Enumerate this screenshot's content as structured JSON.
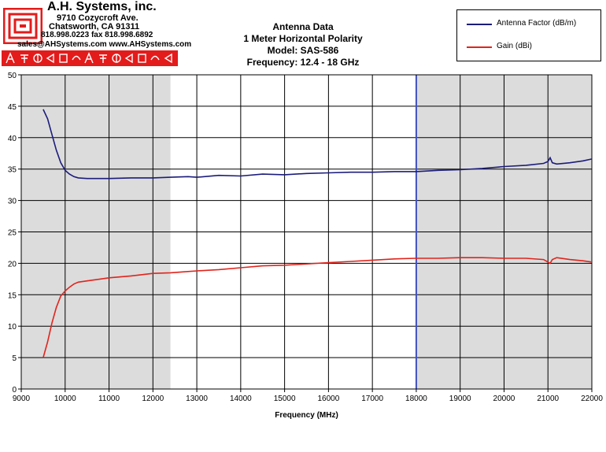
{
  "header": {
    "company_name": "A.H. Systems, inc.",
    "address_line1": "9710 Cozycroft Ave.",
    "address_line2": "Chatsworth, CA 91311",
    "phone_fax": "818.998.0223 fax 818.998.6892",
    "email_web": "sales@AHSystems.com www.AHSystems.com"
  },
  "chart_data": {
    "type": "line",
    "title_lines": [
      "Antenna Data",
      "1 Meter Horizontal Polarity",
      "Model: SAS-586",
      "Frequency: 12.4 - 18 GHz"
    ],
    "xlabel": "Frequency (MHz)",
    "ylabel": "",
    "xlim": [
      9000,
      22000
    ],
    "ylim": [
      0,
      50
    ],
    "x_ticks": [
      9000,
      10000,
      11000,
      12000,
      13000,
      14000,
      15000,
      16000,
      17000,
      18000,
      19000,
      20000,
      21000,
      22000
    ],
    "y_ticks": [
      0,
      5,
      10,
      15,
      20,
      25,
      30,
      35,
      40,
      45,
      50
    ],
    "grid": true,
    "legend_position": "top-right",
    "shaded_regions": [
      [
        9000,
        12400
      ],
      [
        18000,
        22000
      ]
    ],
    "series": [
      {
        "name": "Antenna Factor (dB/m)",
        "color": "#1c1c7c",
        "x": [
          9500,
          9600,
          9700,
          9800,
          9900,
          10000,
          10100,
          10200,
          10300,
          10500,
          11000,
          11500,
          12000,
          12400,
          12800,
          13000,
          13500,
          14000,
          14500,
          15000,
          15500,
          16000,
          16500,
          17000,
          17500,
          18000,
          18500,
          19000,
          19500,
          20000,
          20500,
          20900,
          21000,
          21050,
          21100,
          21200,
          21500,
          21800,
          22000
        ],
        "values": [
          44.5,
          43.0,
          40.5,
          38.0,
          36.0,
          34.8,
          34.2,
          33.8,
          33.6,
          33.5,
          33.5,
          33.6,
          33.6,
          33.7,
          33.8,
          33.7,
          34.0,
          33.9,
          34.2,
          34.1,
          34.3,
          34.4,
          34.5,
          34.5,
          34.6,
          34.6,
          34.8,
          34.9,
          35.1,
          35.4,
          35.6,
          35.9,
          36.2,
          36.8,
          36.0,
          35.8,
          36.0,
          36.3,
          36.6
        ]
      },
      {
        "name": "Gain (dBi)",
        "color": "#e0241c",
        "x": [
          9500,
          9600,
          9700,
          9800,
          9900,
          10000,
          10100,
          10200,
          10300,
          10500,
          11000,
          11500,
          12000,
          12400,
          12800,
          13000,
          13500,
          14000,
          14500,
          15000,
          15500,
          16000,
          16500,
          17000,
          17500,
          18000,
          18500,
          19000,
          19500,
          20000,
          20500,
          20900,
          21000,
          21050,
          21100,
          21200,
          21500,
          21800,
          22000
        ],
        "values": [
          5.0,
          7.5,
          10.5,
          13.0,
          14.8,
          15.6,
          16.2,
          16.7,
          17.0,
          17.2,
          17.7,
          18.0,
          18.4,
          18.5,
          18.7,
          18.8,
          19.0,
          19.3,
          19.6,
          19.7,
          19.9,
          20.1,
          20.3,
          20.5,
          20.7,
          20.8,
          20.8,
          20.9,
          20.9,
          20.8,
          20.8,
          20.6,
          20.2,
          20.0,
          20.6,
          20.9,
          20.6,
          20.4,
          20.2
        ]
      }
    ]
  }
}
